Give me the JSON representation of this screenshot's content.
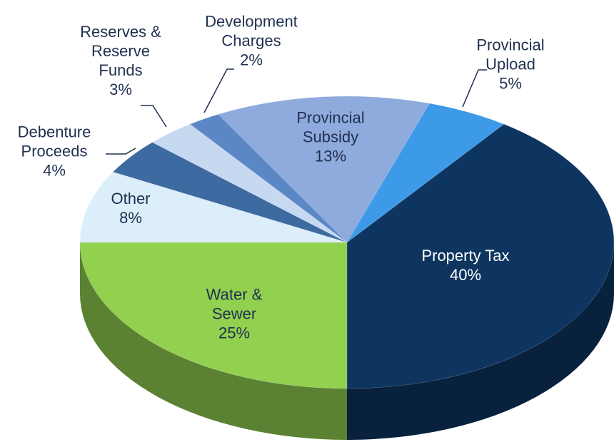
{
  "chart_data": {
    "type": "pie",
    "categories": [
      "Property Tax",
      "Water & Sewer",
      "Other",
      "Debenture Proceeds",
      "Reserves & Reserve Funds",
      "Development Charges",
      "Provincial Subsidy",
      "Provincial Upload"
    ],
    "values": [
      40,
      25,
      8,
      4,
      3,
      2,
      13,
      5
    ],
    "value_labels": [
      "40%",
      "25%",
      "8%",
      "4%",
      "3%",
      "2%",
      "13%",
      "5%"
    ],
    "colors": [
      "#0d3560",
      "#92d050",
      "#dbeefa",
      "#3d6aa0",
      "#c6d9f1",
      "#5b87c5",
      "#8faadc",
      "#3c9ae8"
    ]
  }
}
